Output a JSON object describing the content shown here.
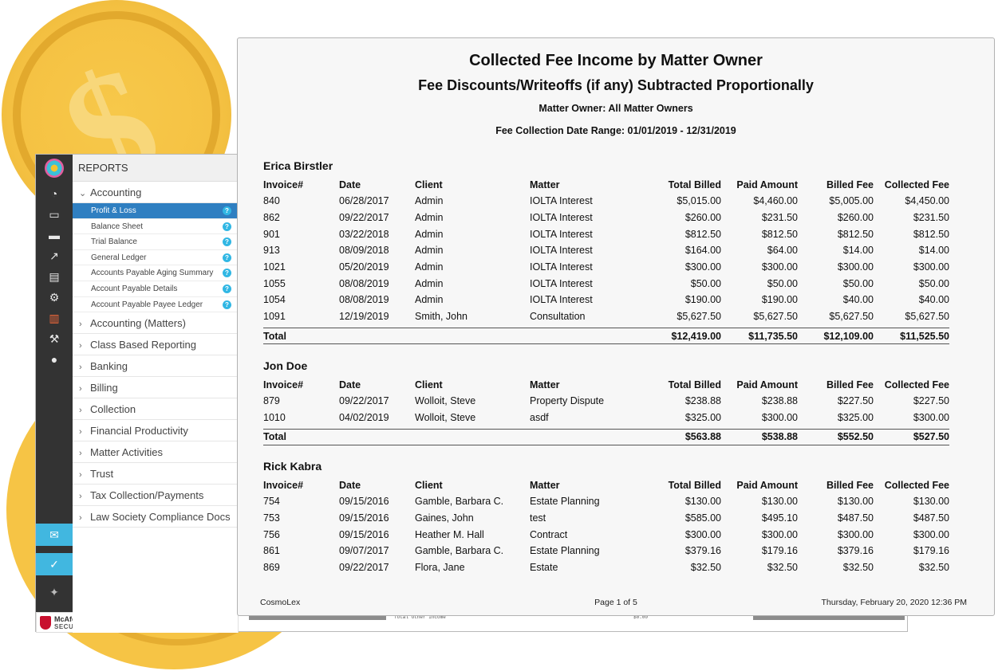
{
  "sidebar": {
    "header": "REPORTS",
    "accounting": {
      "label": "Accounting",
      "items": [
        {
          "label": "Profit & Loss"
        },
        {
          "label": "Balance Sheet"
        },
        {
          "label": "Trial Balance"
        },
        {
          "label": "General Ledger"
        },
        {
          "label": "Accounts Payable Aging Summary"
        },
        {
          "label": "Account Payable Details"
        },
        {
          "label": "Account Payable Payee Ledger"
        }
      ]
    },
    "categories": [
      {
        "label": "Accounting (Matters)"
      },
      {
        "label": "Class Based Reporting"
      },
      {
        "label": "Banking"
      },
      {
        "label": "Billing"
      },
      {
        "label": "Collection"
      },
      {
        "label": "Financial Productivity"
      },
      {
        "label": "Matter Activities"
      },
      {
        "label": "Trust"
      },
      {
        "label": "Tax Collection/Payments"
      },
      {
        "label": "Law Society Compliance Docs"
      }
    ]
  },
  "badge": {
    "line1": "McAfee",
    "line2": "SECURE"
  },
  "behind": {
    "label": "Total Other Income",
    "value": "$0.00"
  },
  "report": {
    "title": "Collected Fee Income by Matter Owner",
    "subtitle": "Fee Discounts/Writeoffs (if any) Subtracted Proportionally",
    "owner_line": "Matter Owner: All Matter Owners",
    "date_range": "Fee Collection Date Range: 01/01/2019 - 12/31/2019",
    "columns": [
      "Invoice#",
      "Date",
      "Client",
      "Matter",
      "Total Billed",
      "Paid Amount",
      "Billed Fee",
      "Collected Fee"
    ],
    "total_label": "Total",
    "groups": [
      {
        "owner": "Erica Birstler",
        "rows": [
          [
            "840",
            "06/28/2017",
            "Admin",
            "IOLTA Interest",
            "$5,015.00",
            "$4,460.00",
            "$5,005.00",
            "$4,450.00"
          ],
          [
            "862",
            "09/22/2017",
            "Admin",
            "IOLTA Interest",
            "$260.00",
            "$231.50",
            "$260.00",
            "$231.50"
          ],
          [
            "901",
            "03/22/2018",
            "Admin",
            "IOLTA Interest",
            "$812.50",
            "$812.50",
            "$812.50",
            "$812.50"
          ],
          [
            "913",
            "08/09/2018",
            "Admin",
            "IOLTA Interest",
            "$164.00",
            "$64.00",
            "$14.00",
            "$14.00"
          ],
          [
            "1021",
            "05/20/2019",
            "Admin",
            "IOLTA Interest",
            "$300.00",
            "$300.00",
            "$300.00",
            "$300.00"
          ],
          [
            "1055",
            "08/08/2019",
            "Admin",
            "IOLTA Interest",
            "$50.00",
            "$50.00",
            "$50.00",
            "$50.00"
          ],
          [
            "1054",
            "08/08/2019",
            "Admin",
            "IOLTA Interest",
            "$190.00",
            "$190.00",
            "$40.00",
            "$40.00"
          ],
          [
            "1091",
            "12/19/2019",
            "Smith, John",
            "Consultation",
            "$5,627.50",
            "$5,627.50",
            "$5,627.50",
            "$5,627.50"
          ]
        ],
        "totals": [
          "$12,419.00",
          "$11,735.50",
          "$12,109.00",
          "$11,525.50"
        ]
      },
      {
        "owner": "Jon Doe",
        "rows": [
          [
            "879",
            "09/22/2017",
            "Wolloit, Steve",
            "Property Dispute",
            "$238.88",
            "$238.88",
            "$227.50",
            "$227.50"
          ],
          [
            "1010",
            "04/02/2019",
            "Wolloit, Steve",
            "asdf",
            "$325.00",
            "$300.00",
            "$325.00",
            "$300.00"
          ]
        ],
        "totals": [
          "$563.88",
          "$538.88",
          "$552.50",
          "$527.50"
        ]
      },
      {
        "owner": "Rick Kabra",
        "rows": [
          [
            "754",
            "09/15/2016",
            "Gamble, Barbara C.",
            "Estate Planning",
            "$130.00",
            "$130.00",
            "$130.00",
            "$130.00"
          ],
          [
            "753",
            "09/15/2016",
            "Gaines, John",
            "test",
            "$585.00",
            "$495.10",
            "$487.50",
            "$487.50"
          ],
          [
            "756",
            "09/15/2016",
            "Heather M. Hall",
            "Contract",
            "$300.00",
            "$300.00",
            "$300.00",
            "$300.00"
          ],
          [
            "861",
            "09/07/2017",
            "Gamble, Barbara C.",
            "Estate Planning",
            "$379.16",
            "$179.16",
            "$379.16",
            "$179.16"
          ],
          [
            "869",
            "09/22/2017",
            "Flora, Jane",
            "Estate",
            "$32.50",
            "$32.50",
            "$32.50",
            "$32.50"
          ]
        ],
        "totals": null
      }
    ],
    "footer": {
      "left": "CosmoLex",
      "center": "Page 1 of 5",
      "right": "Thursday, February 20, 2020 12:36 PM"
    }
  }
}
